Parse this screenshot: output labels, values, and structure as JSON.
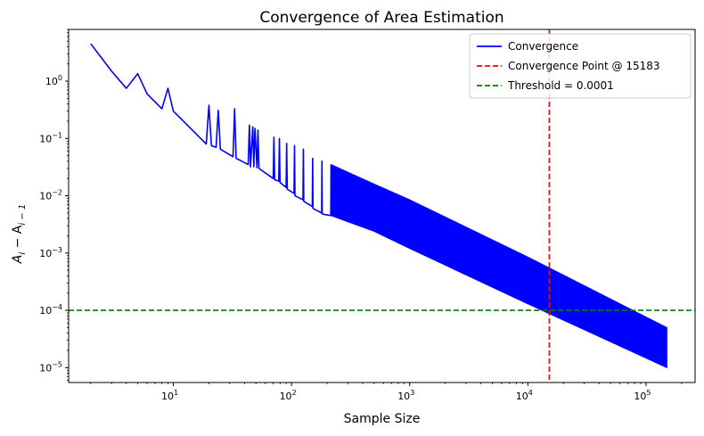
{
  "chart_data": {
    "type": "line",
    "title": "Convergence of Area Estimation",
    "xlabel": "Sample Size",
    "ylabel_base": "A",
    "ylabel_sub1": "i",
    "ylabel_mid": " − A",
    "ylabel_sub2": "i − 1",
    "xscale": "log",
    "yscale": "log",
    "xlim": [
      1.3,
      260000
    ],
    "ylim": [
      5.5e-06,
      8
    ],
    "x_ticks": [
      {
        "value": 10,
        "base": "10",
        "exp": "1"
      },
      {
        "value": 100,
        "base": "10",
        "exp": "2"
      },
      {
        "value": 1000,
        "base": "10",
        "exp": "3"
      },
      {
        "value": 10000,
        "base": "10",
        "exp": "4"
      },
      {
        "value": 100000,
        "base": "10",
        "exp": "5"
      }
    ],
    "y_ticks": [
      {
        "value": 1e-05,
        "base": "10",
        "exp": "−5"
      },
      {
        "value": 0.0001,
        "base": "10",
        "exp": "−4"
      },
      {
        "value": 0.001,
        "base": "10",
        "exp": "−3"
      },
      {
        "value": 0.01,
        "base": "10",
        "exp": "−2"
      },
      {
        "value": 0.1,
        "base": "10",
        "exp": "−1"
      },
      {
        "value": 1,
        "base": "10",
        "exp": "0"
      }
    ],
    "legend_position": "top-right",
    "legend": [
      {
        "label": "Convergence",
        "color": "#0000ff",
        "style": "solid"
      },
      {
        "label": "Convergence Point @ 15183",
        "color": "#ff0000",
        "style": "dashed"
      },
      {
        "label": "Threshold = 0.0001",
        "color": "#008000",
        "style": "dashed"
      }
    ],
    "series": [
      {
        "name": "Convergence",
        "color": "#0000ff",
        "x": [
          2,
          3,
          4,
          5,
          6,
          8,
          9,
          10,
          19,
          20,
          21,
          23,
          24,
          25,
          32,
          33,
          34,
          43,
          44,
          45,
          47,
          48,
          49,
          51,
          52,
          53,
          70,
          71,
          72,
          78,
          79,
          80,
          90,
          91,
          92,
          105,
          106,
          107,
          125,
          126,
          127,
          150,
          151,
          152,
          180,
          181,
          182,
          215,
          216
        ],
        "y": [
          4.5,
          1.5,
          0.75,
          1.35,
          0.6,
          0.33,
          0.75,
          0.3,
          0.08,
          0.38,
          0.075,
          0.07,
          0.31,
          0.065,
          0.048,
          0.33,
          0.045,
          0.035,
          0.17,
          0.032,
          0.16,
          0.032,
          0.15,
          0.031,
          0.14,
          0.03,
          0.02,
          0.105,
          0.019,
          0.018,
          0.1,
          0.017,
          0.014,
          0.082,
          0.013,
          0.011,
          0.075,
          0.01,
          0.0085,
          0.065,
          0.008,
          0.0065,
          0.045,
          0.006,
          0.005,
          0.04,
          0.0048,
          0.0045,
          0.035
        ],
        "band_x": [
          216,
          500,
          1000,
          10000,
          150000
        ],
        "band_upper": [
          0.035,
          0.016,
          0.0085,
          0.00085,
          5e-05
        ],
        "band_lower": [
          0.0045,
          0.0024,
          0.0012,
          0.00013,
          1e-05
        ]
      }
    ],
    "vline": {
      "x": 15183,
      "color": "#ff0000"
    },
    "hline": {
      "y": 0.0001,
      "color": "#008000"
    }
  }
}
